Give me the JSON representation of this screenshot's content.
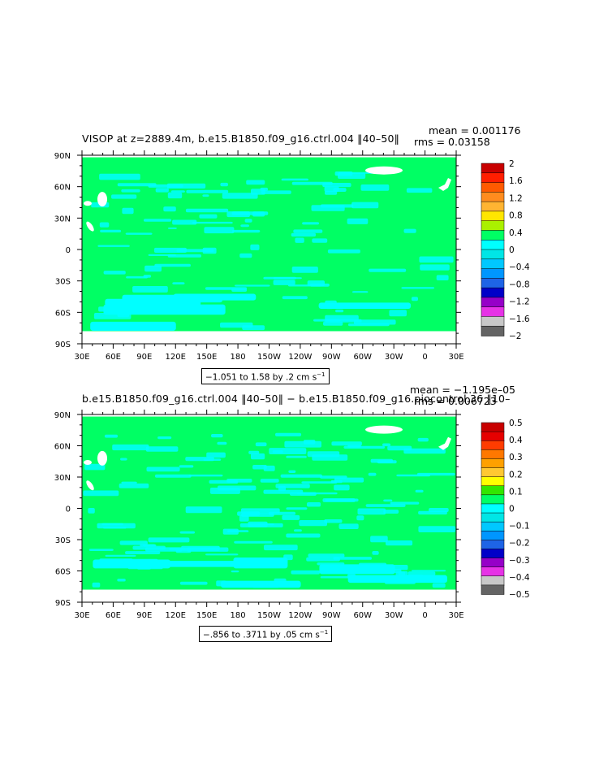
{
  "palette": [
    "#646464",
    "#c8c8c8",
    "#e632e6",
    "#9600c8",
    "#0000c8",
    "#1e64e6",
    "#0096ff",
    "#00c8ff",
    "#00e6e6",
    "#00ffff",
    "#00ff64",
    "#32e600",
    "#b4ff00",
    "#ffff00",
    "#ffe600",
    "#ffc832",
    "#ffa000",
    "#ff7800",
    "#ff3c00",
    "#e60000",
    "#c80000"
  ],
  "chart_data": [
    {
      "type": "heatmap",
      "title": "VISOP at z=2889.4m, b.e15.B1850.f09_g16.ctrl.004 ‖40–50‖",
      "stats": {
        "mean": "mean = 0.001176",
        "rms": "rms = 0.03158"
      },
      "contour_note": "−1.051 to 1.58 by .2 cm s",
      "contour_note_sup": "−1",
      "x_ticks": [
        "30E",
        "60E",
        "90E",
        "120E",
        "150E",
        "180",
        "150W",
        "120W",
        "90W",
        "60W",
        "30W",
        "0",
        "30E"
      ],
      "y_ticks": [
        "90N",
        "60N",
        "30N",
        "0",
        "30S",
        "60S",
        "90S"
      ],
      "colorbar": {
        "labels": [
          "2",
          "1.6",
          "1.2",
          "0.8",
          "0.4",
          "0",
          "−0.4",
          "−0.8",
          "−1.2",
          "−1.6",
          "−2"
        ],
        "colors": [
          "#c80000",
          "#ff1e00",
          "#ff5a00",
          "#ff8c1e",
          "#ffb432",
          "#ffe600",
          "#aaf000",
          "#00ff64",
          "#00ffff",
          "#00e6e6",
          "#00c8ff",
          "#0096ff",
          "#1e64e6",
          "#0000c8",
          "#9600c8",
          "#e632e6",
          "#c8c8c8",
          "#646464"
        ]
      }
    },
    {
      "type": "heatmap",
      "title": "b.e15.B1850.f09_g16.ctrl.004 ‖40–50‖ − b.e15.B1850.f09_g16.piocontrol.36 ‖10–",
      "stats": {
        "mean": "mean = −1.195e–05",
        "rms": "rms = 0.006723"
      },
      "contour_note": "−.856 to .3711 by .05 cm s",
      "contour_note_sup": "−1",
      "x_ticks": [
        "30E",
        "60E",
        "90E",
        "120E",
        "150E",
        "180",
        "150W",
        "120W",
        "90W",
        "60W",
        "30W",
        "0",
        "30E"
      ],
      "y_ticks": [
        "90N",
        "60N",
        "30N",
        "0",
        "30S",
        "60S",
        "90S"
      ],
      "colorbar": {
        "labels": [
          "0.5",
          "0.4",
          "0.3",
          "0.2",
          "0.1",
          "0",
          "−0.1",
          "−0.2",
          "−0.3",
          "−0.4",
          "−0.5"
        ],
        "colors": [
          "#c80000",
          "#e60000",
          "#ff3c00",
          "#ff7800",
          "#ffa000",
          "#ffc832",
          "#ffff00",
          "#32e600",
          "#00ff64",
          "#00ffff",
          "#00e6e6",
          "#00c8ff",
          "#0096ff",
          "#1e64e6",
          "#0000c8",
          "#9600c8",
          "#e632e6",
          "#c8c8c8",
          "#646464"
        ]
      }
    }
  ]
}
